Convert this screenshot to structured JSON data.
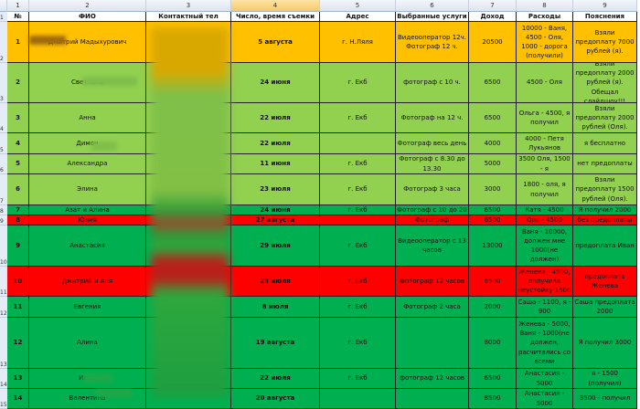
{
  "column_letters": [
    "1",
    "2",
    "3",
    "4",
    "5",
    "6",
    "7",
    "8",
    "9"
  ],
  "row_numbers": [
    "1",
    "2",
    "3",
    "4",
    "5",
    "6",
    "7",
    "8",
    "9",
    "10",
    "11",
    "12",
    "13",
    "14",
    "15"
  ],
  "headers": [
    "№",
    "ФИО",
    "Контактный тел",
    "Число, время съемки",
    "Адрес",
    "Выбранные услуги",
    "Доход",
    "Расходы",
    "Пояснения"
  ],
  "colors": {
    "orange": "#ffc000",
    "light_green": "#92d050",
    "green": "#00b050",
    "red": "#ff0000"
  },
  "rows": [
    {
      "n": "1",
      "name": "Дмитрий Мадыхурович",
      "phone": "",
      "date": "5 августа",
      "addr": "г. Н.Ляля",
      "service": "Видеооператор 12ч. Фотограф 12 ч.",
      "income": "20500",
      "expenses": "10000 - Ваня, 4500 - Оля, 1000 - дорога (получили)",
      "notes": "Взяли предоплату 7000 рублей (я).",
      "color": "orange"
    },
    {
      "n": "2",
      "name": "Светлана",
      "phone": "",
      "date": "24 июня",
      "addr": "г. Екб",
      "service": "фотограф с 10 ч.",
      "income": "6500",
      "expenses": "4500 - Оля",
      "notes": "Взяли предоплату 2000 рублей (я). Обещал слайдшоу!!!",
      "color": "light_green"
    },
    {
      "n": "3",
      "name": "Анна",
      "phone": "",
      "date": "22 июля",
      "addr": "г. Екб",
      "service": "Фотограф на 12 ч.",
      "income": "6500",
      "expenses": "Ольга - 4500, я получил",
      "notes": "Взяли предоплату 2000 рублей (Оля).",
      "color": "light_green"
    },
    {
      "n": "4",
      "name": "Димон",
      "phone": "",
      "date": "22 июля",
      "addr": "",
      "service": "Фотограф весь день",
      "income": "4000",
      "expenses": "4000 - Петя Лукьянов",
      "notes": "я бесплатно",
      "color": "light_green"
    },
    {
      "n": "5",
      "name": "Александра",
      "phone": "",
      "date": "11 июня",
      "addr": "г. Екб",
      "service": "Фотограф с 8.30 до 13.30",
      "income": "5000",
      "expenses": "3500 Оля, 1500 - я",
      "notes": "нет предоплаты",
      "color": "light_green"
    },
    {
      "n": "6",
      "name": "Элина",
      "phone": "",
      "date": "23 июля",
      "addr": "г. Екб",
      "service": "Фотограф 3 часа",
      "income": "3000",
      "expenses": "1800 - оля, я получил",
      "notes": "Взяли предоплату 1500 рублей (Оля).",
      "color": "light_green"
    },
    {
      "n": "7",
      "name": "Азат и Алина",
      "phone": "",
      "date": "24 июня",
      "addr": "г. Екб",
      "service": "Фотограф с 10 до 20",
      "income": "6500",
      "expenses": "Катя - 4500",
      "notes": "Я получил 2000",
      "color": "green"
    },
    {
      "n": "8",
      "name": "Юлия",
      "phone": "",
      "date": "27 августа",
      "addr": "",
      "service": "Фотограф",
      "income": "6500",
      "expenses": "Оля - 4500",
      "notes": "без предоплаты",
      "color": "red"
    },
    {
      "n": "9",
      "name": "Анастасия",
      "phone": "",
      "date": "29 июля",
      "addr": "г. Екб",
      "service": "Видеооператор с 13 часов",
      "income": "13000",
      "expenses": "Ваня - 10000, должен мне 1000(не должен)",
      "notes": "предоплата Иван",
      "color": "green"
    },
    {
      "n": "10",
      "name": "Дмитрий и Аня",
      "phone": "",
      "date": "23 июля",
      "addr": "г. Екб",
      "service": "Фотограф 12 часов",
      "income": "6500",
      "expenses": "Женева - 4500, получила неустойку 1500",
      "notes": "предоплата Женева",
      "color": "red"
    },
    {
      "n": "11",
      "name": "Евгения",
      "phone": "",
      "date": "8 июля",
      "addr": "г. Екб",
      "service": "Фотограф 2 часа",
      "income": "2000",
      "expenses": "Саша - 1100, я - 900",
      "notes": "Саша предоплата 2000",
      "color": "green"
    },
    {
      "n": "12",
      "name": "Алина",
      "phone": "",
      "date": "19 августа",
      "addr": "г. Екб",
      "service": "",
      "income": "8000",
      "expenses": "Женева - 5000, Ваня - 1000(не должен, расчитались со всеми",
      "notes": "Я получил 3000",
      "color": "green"
    },
    {
      "n": "13",
      "name": "Инна",
      "phone": "",
      "date": "22 июля",
      "addr": "г. Екб",
      "service": "фотограф 12 часов",
      "income": "6500",
      "expenses": "Анастасия - 5000",
      "notes": "я - 1500 (получил)",
      "color": "green"
    },
    {
      "n": "14",
      "name": "Валентина",
      "phone": "",
      "date": "20 августа",
      "addr": "",
      "service": "",
      "income": "8500",
      "expenses": "Анастасия - 5000",
      "notes": "3500 - получил",
      "color": "green"
    }
  ]
}
